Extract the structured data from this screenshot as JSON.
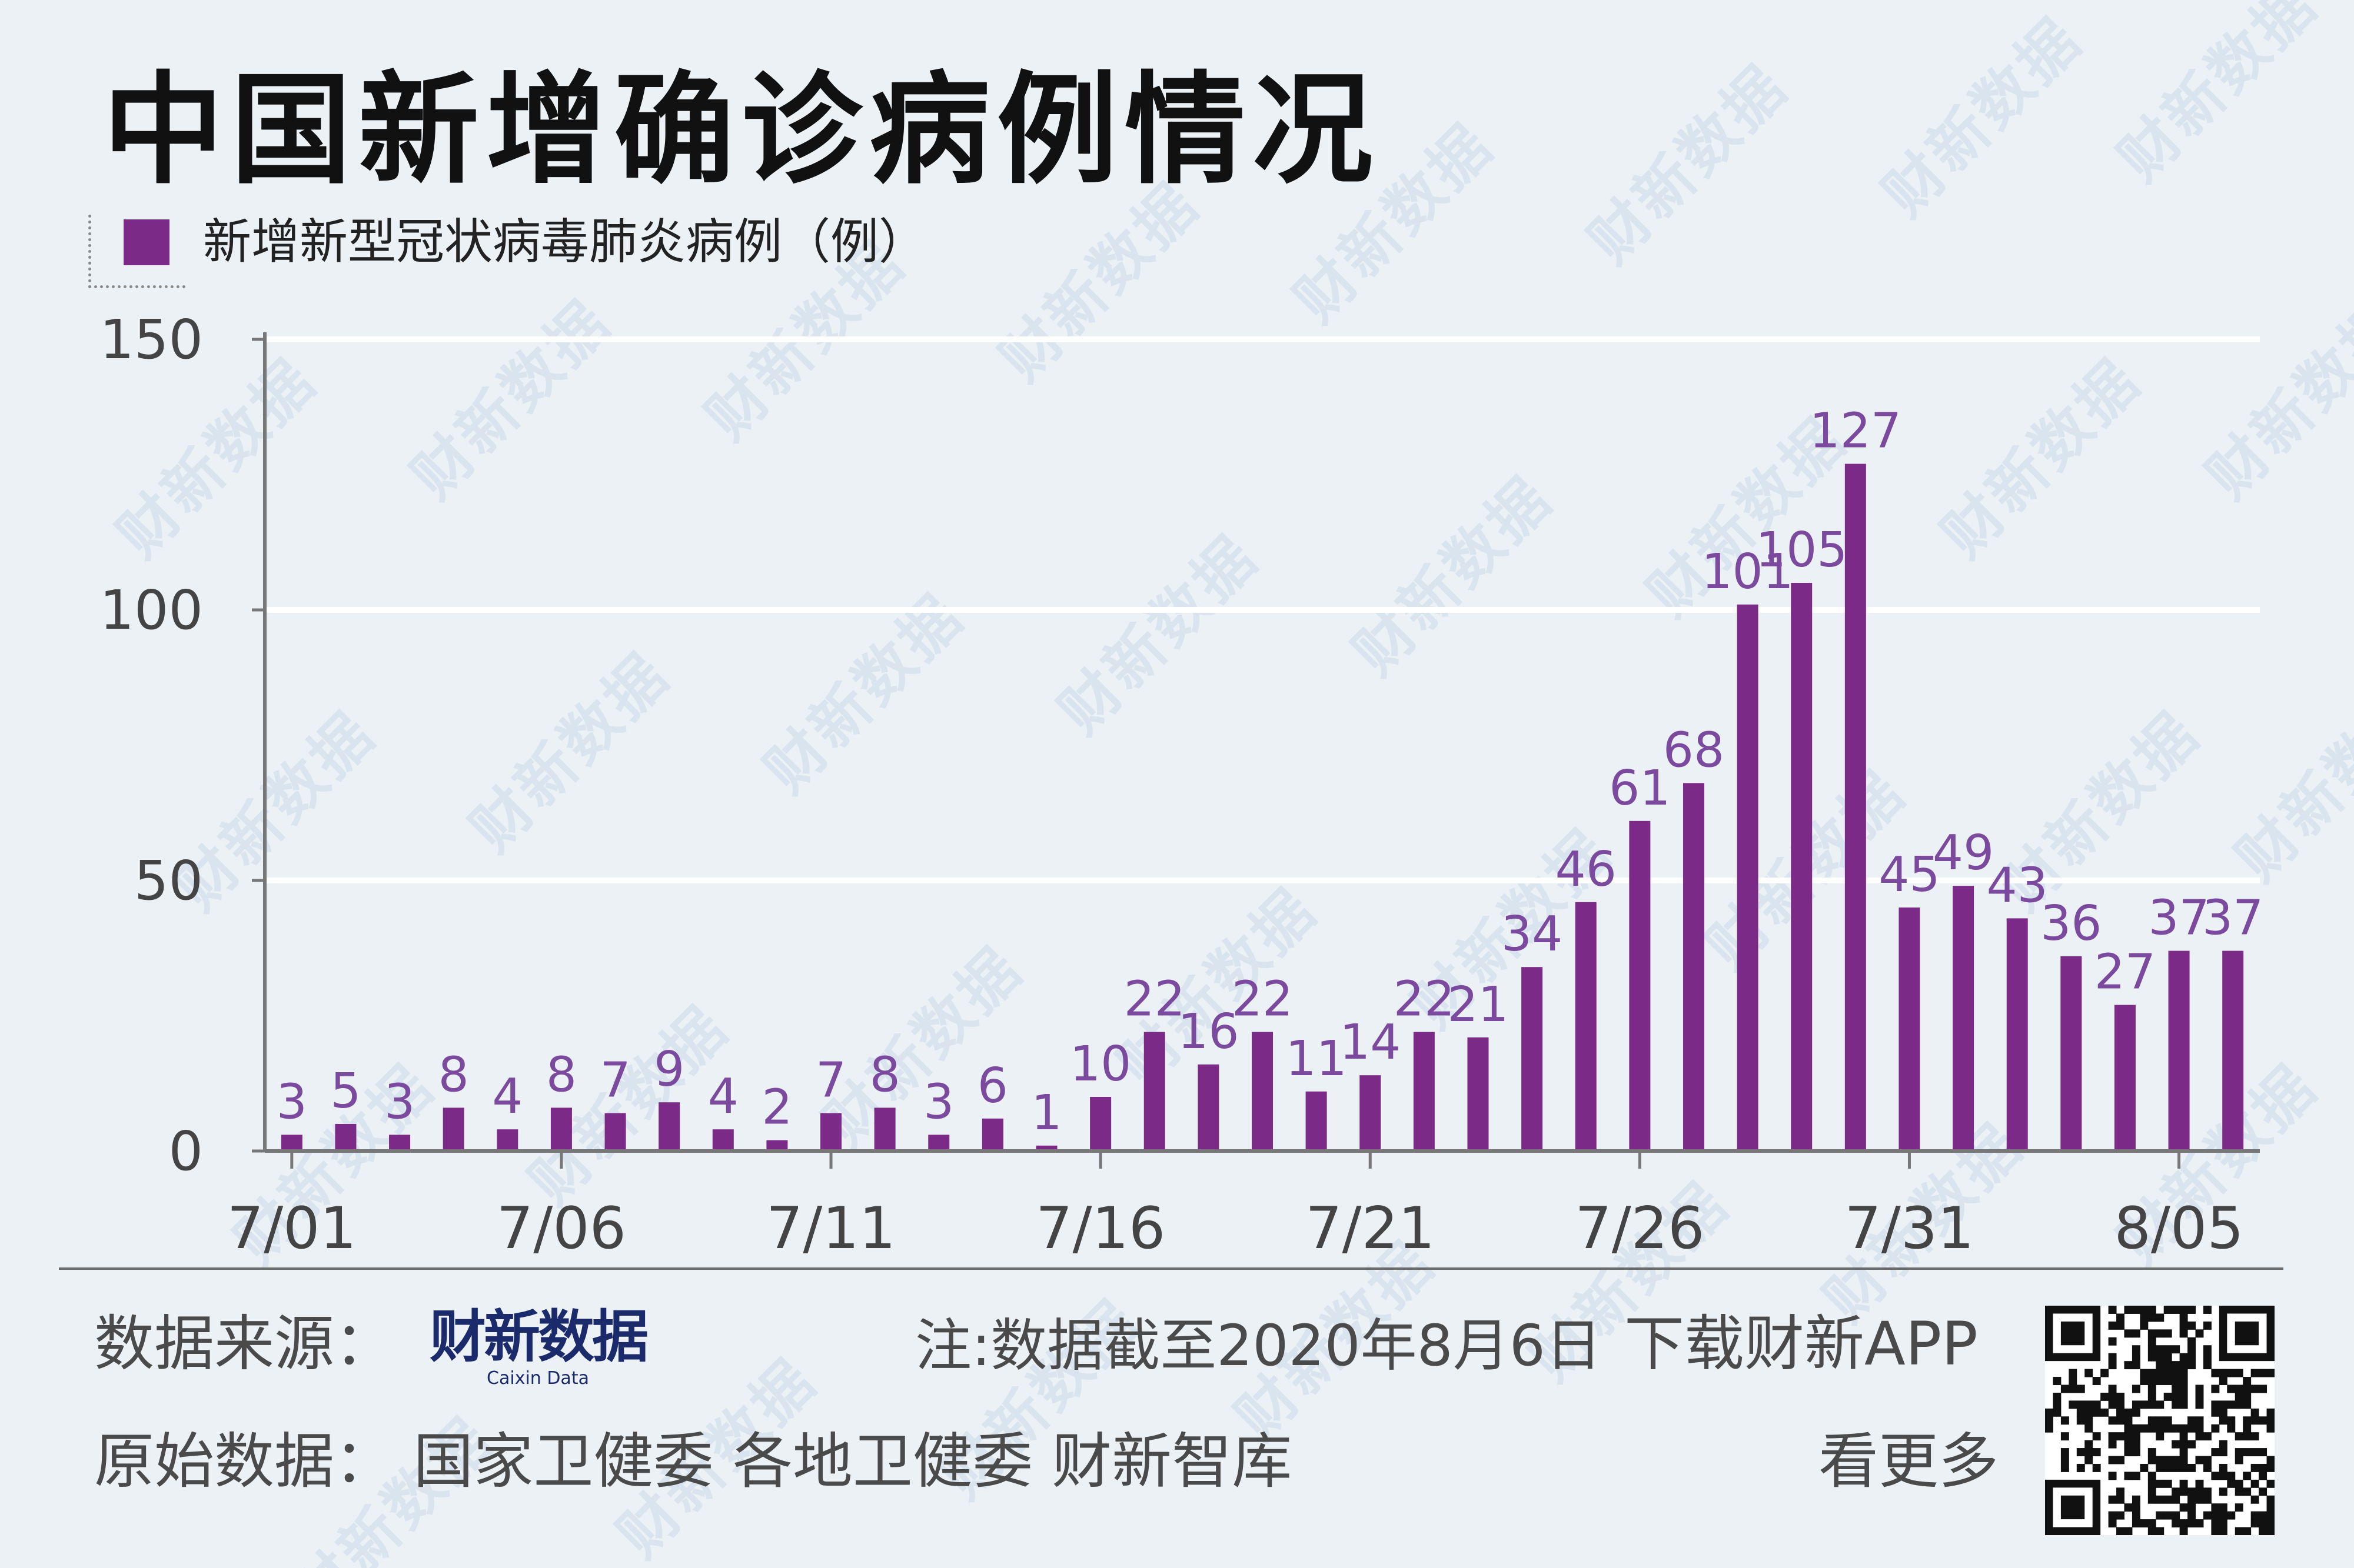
{
  "title": "中国新增确诊病例情况",
  "legend": {
    "label": "新增新型冠状病毒肺炎病例（例）",
    "color": "#7b2a87"
  },
  "chart_data": {
    "type": "bar",
    "categories": [
      "7/01",
      "7/02",
      "7/03",
      "7/04",
      "7/05",
      "7/06",
      "7/07",
      "7/08",
      "7/09",
      "7/10",
      "7/11",
      "7/12",
      "7/13",
      "7/14",
      "7/15",
      "7/16",
      "7/17",
      "7/18",
      "7/19",
      "7/20",
      "7/21",
      "7/22",
      "7/23",
      "7/24",
      "7/25",
      "7/26",
      "7/27",
      "7/28",
      "7/29",
      "7/30",
      "7/31",
      "8/01",
      "8/02",
      "8/03",
      "8/04",
      "8/05",
      "8/06"
    ],
    "series": [
      {
        "name": "新增新型冠状病毒肺炎病例（例）",
        "values": [
          3,
          5,
          3,
          8,
          4,
          8,
          7,
          9,
          4,
          2,
          7,
          8,
          3,
          6,
          1,
          10,
          22,
          16,
          22,
          11,
          14,
          22,
          21,
          34,
          46,
          61,
          68,
          101,
          105,
          127,
          45,
          49,
          43,
          36,
          27,
          37,
          37
        ]
      }
    ],
    "xticks": [
      "7/01",
      "7/06",
      "7/11",
      "7/16",
      "7/21",
      "7/26",
      "7/31",
      "8/05"
    ],
    "yticks": [
      0,
      50,
      100,
      150
    ],
    "ylim": [
      0,
      150
    ],
    "grid": true,
    "bar_color": "#7b2a87",
    "label_color": "#7b4a9e"
  },
  "footer": {
    "source_label": "数据来源：",
    "source_logo": "财新数据",
    "source_logo_sub": "Caixin Data",
    "note": "注:数据截至2020年8月6日",
    "download": "下载财新APP",
    "origin": "原始数据：  国家卫健委  各地卫健委  财新智库",
    "more": "看更多"
  },
  "watermark_text": "财新数据"
}
